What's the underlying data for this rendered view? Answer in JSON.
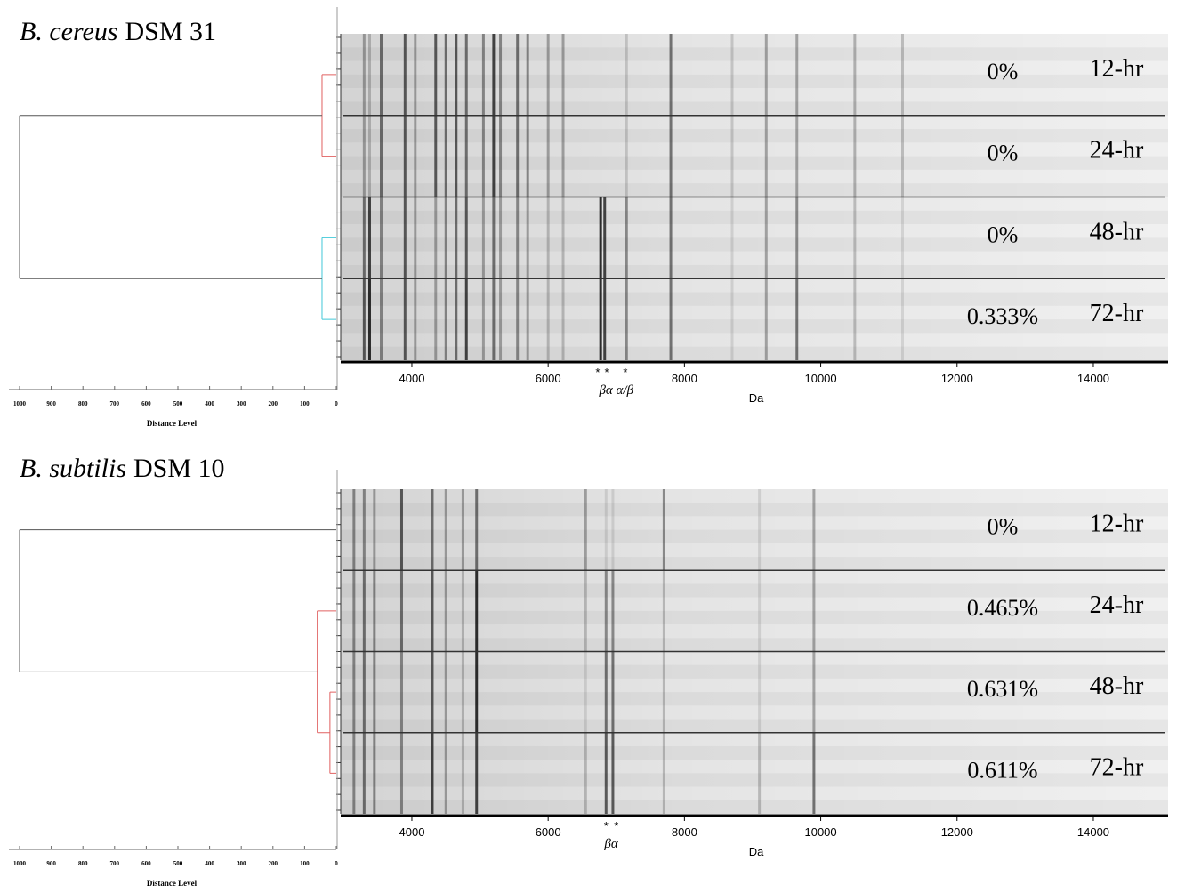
{
  "chart_data": [
    {
      "type": "gel_dendrogram",
      "title_species": "B. cereus",
      "title_strain": "DSM 31",
      "xlabel": "Da",
      "xlim": [
        2956,
        15097
      ],
      "xticks": [
        4000,
        6000,
        8000,
        10000,
        12000,
        14000
      ],
      "rows": [
        {
          "percent": "0%",
          "time": "12-hr"
        },
        {
          "percent": "0%",
          "time": "24-hr"
        },
        {
          "percent": "0%",
          "time": "48-hr"
        },
        {
          "percent": "0.333%",
          "time": "72-hr"
        }
      ],
      "bands": [
        {
          "mz": 3300,
          "shade": [
            0.3,
            0.3,
            0.5,
            0.6
          ]
        },
        {
          "mz": 3380,
          "shade": [
            0.2,
            0.2,
            0.7,
            0.8
          ]
        },
        {
          "mz": 3550,
          "shade": [
            0.5,
            0.5,
            0.4,
            0.4
          ]
        },
        {
          "mz": 3900,
          "shade": [
            0.6,
            0.6,
            0.6,
            0.6
          ]
        },
        {
          "mz": 4050,
          "shade": [
            0.3,
            0.3,
            0.3,
            0.3
          ]
        },
        {
          "mz": 4350,
          "shade": [
            0.6,
            0.6,
            0.3,
            0.3
          ]
        },
        {
          "mz": 4500,
          "shade": [
            0.5,
            0.5,
            0.4,
            0.4
          ]
        },
        {
          "mz": 4650,
          "shade": [
            0.6,
            0.6,
            0.5,
            0.5
          ]
        },
        {
          "mz": 4800,
          "shade": [
            0.5,
            0.5,
            0.6,
            0.7
          ]
        },
        {
          "mz": 5050,
          "shade": [
            0.4,
            0.4,
            0.3,
            0.3
          ]
        },
        {
          "mz": 5200,
          "shade": [
            0.7,
            0.7,
            0.5,
            0.5
          ]
        },
        {
          "mz": 5300,
          "shade": [
            0.4,
            0.4,
            0.3,
            0.3
          ]
        },
        {
          "mz": 5550,
          "shade": [
            0.5,
            0.5,
            0.4,
            0.4
          ]
        },
        {
          "mz": 5700,
          "shade": [
            0.4,
            0.4,
            0.3,
            0.3
          ]
        },
        {
          "mz": 6000,
          "shade": [
            0.3,
            0.3,
            0.2,
            0.2
          ]
        },
        {
          "mz": 6220,
          "shade": [
            0.3,
            0.3,
            0.2,
            0.2
          ]
        },
        {
          "mz": 6770,
          "shade": [
            0,
            0,
            0.8,
            0.8
          ]
        },
        {
          "mz": 6830,
          "shade": [
            0,
            0,
            0.7,
            0.7
          ]
        },
        {
          "mz": 7150,
          "shade": [
            0.15,
            0.15,
            0.4,
            0.4
          ]
        },
        {
          "mz": 7800,
          "shade": [
            0.5,
            0.5,
            0.5,
            0.5
          ]
        },
        {
          "mz": 8700,
          "shade": [
            0.15,
            0.15,
            0.1,
            0.1
          ]
        },
        {
          "mz": 9200,
          "shade": [
            0.3,
            0.3,
            0.3,
            0.3
          ]
        },
        {
          "mz": 9650,
          "shade": [
            0.3,
            0.3,
            0.4,
            0.5
          ]
        },
        {
          "mz": 10500,
          "shade": [
            0.25,
            0.25,
            0.2,
            0.2
          ]
        },
        {
          "mz": 11200,
          "shade": [
            0.2,
            0.2,
            0.1,
            0.1
          ]
        }
      ],
      "annotations": [
        {
          "x": 6728,
          "text": "*"
        },
        {
          "x": 6859,
          "text": "*"
        },
        {
          "x": 7133,
          "text": "*"
        }
      ],
      "annotation_label": {
        "x": 7000,
        "text": "βα α/β"
      },
      "dendrogram": {
        "xlabel": "Distance Level",
        "xlim": [
          1000,
          0
        ],
        "xticks": [
          1000,
          900,
          800,
          700,
          600,
          500,
          400,
          300,
          200,
          100,
          0
        ],
        "tree": {
          "distance": 1000,
          "color": "#555555",
          "children": [
            {
              "distance": 45,
              "color": "#e06060",
              "children": [
                {
                  "distance": 0
                },
                {
                  "distance": 0
                }
              ]
            },
            {
              "distance": 45,
              "color": "#40c8d8",
              "children": [
                {
                  "distance": 0
                },
                {
                  "distance": 0
                }
              ]
            }
          ]
        }
      }
    },
    {
      "type": "gel_dendrogram",
      "title_species": "B. subtilis",
      "title_strain": "DSM 10",
      "xlabel": "Da",
      "xlim": [
        2956,
        15097
      ],
      "xticks": [
        4000,
        6000,
        8000,
        10000,
        12000,
        14000
      ],
      "rows": [
        {
          "percent": "0%",
          "time": "12-hr"
        },
        {
          "percent": "0.465%",
          "time": "24-hr"
        },
        {
          "percent": "0.631%",
          "time": "48-hr"
        },
        {
          "percent": "0.611%",
          "time": "72-hr"
        }
      ],
      "bands": [
        {
          "mz": 3150,
          "shade": [
            0.4,
            0.4,
            0.4,
            0.4
          ]
        },
        {
          "mz": 3300,
          "shade": [
            0.4,
            0.5,
            0.5,
            0.5
          ]
        },
        {
          "mz": 3450,
          "shade": [
            0.3,
            0.4,
            0.4,
            0.4
          ]
        },
        {
          "mz": 3850,
          "shade": [
            0.6,
            0.5,
            0.4,
            0.4
          ]
        },
        {
          "mz": 4300,
          "shade": [
            0.5,
            0.6,
            0.6,
            0.7
          ]
        },
        {
          "mz": 4500,
          "shade": [
            0.3,
            0.3,
            0.3,
            0.3
          ]
        },
        {
          "mz": 4750,
          "shade": [
            0.3,
            0.2,
            0.2,
            0.2
          ]
        },
        {
          "mz": 4950,
          "shade": [
            0.5,
            0.8,
            0.8,
            0.7
          ]
        },
        {
          "mz": 6550,
          "shade": [
            0.3,
            0.2,
            0.1,
            0.2
          ]
        },
        {
          "mz": 6850,
          "shade": [
            0.1,
            0.4,
            0.5,
            0.6
          ]
        },
        {
          "mz": 6950,
          "shade": [
            0.1,
            0.4,
            0.5,
            0.6
          ]
        },
        {
          "mz": 7700,
          "shade": [
            0.4,
            0.2,
            0.2,
            0.2
          ]
        },
        {
          "mz": 9100,
          "shade": [
            0.1,
            0.1,
            0.1,
            0.2
          ]
        },
        {
          "mz": 9900,
          "shade": [
            0.3,
            0.3,
            0.3,
            0.5
          ]
        }
      ],
      "annotations": [
        {
          "x": 6850,
          "text": "*"
        },
        {
          "x": 7000,
          "text": "*"
        }
      ],
      "annotation_label": {
        "x": 6925,
        "text": "βα"
      },
      "dendrogram": {
        "xlabel": "Distance Level",
        "xlim": [
          1000,
          0
        ],
        "xticks": [
          1000,
          900,
          800,
          700,
          600,
          500,
          400,
          300,
          200,
          100,
          0
        ],
        "tree": {
          "distance": 1000,
          "color": "#555555",
          "children": [
            {
              "distance": 0
            },
            {
              "distance": 60,
              "color": "#e06060",
              "children": [
                {
                  "distance": 0
                },
                {
                  "distance": 20,
                  "color": "#e06060",
                  "children": [
                    {
                      "distance": 0
                    },
                    {
                      "distance": 0
                    }
                  ]
                }
              ]
            }
          ]
        }
      }
    }
  ]
}
